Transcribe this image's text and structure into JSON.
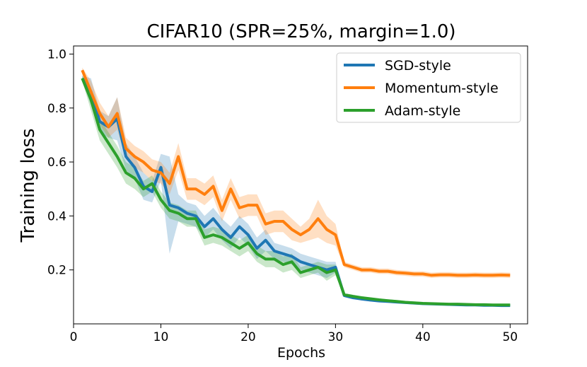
{
  "chart_data": {
    "type": "line",
    "title": "CIFAR10 (SPR=25%, margin=1.0)",
    "xlabel": "Epochs",
    "ylabel": "Training loss",
    "xlim": [
      0,
      52
    ],
    "ylim": [
      0.0,
      1.03
    ],
    "xticks": [
      0,
      10,
      20,
      30,
      40,
      50
    ],
    "yticks": [
      0.2,
      0.4,
      0.6,
      0.8,
      1.0
    ],
    "ytick_labels": [
      "0.2",
      "0.4",
      "0.6",
      "0.8",
      "1.0"
    ],
    "grid": false,
    "legend_position": "top-right",
    "series": [
      {
        "name": "SGD-style",
        "color": "#1f77b4",
        "band_color": "#1f77b4",
        "band_halfwidth": [
          0.01,
          0.05,
          0.04,
          0.04,
          0.08,
          0.05,
          0.04,
          0.05,
          0.04,
          0.05,
          0.18,
          0.05,
          0.04,
          0.04,
          0.04,
          0.04,
          0.04,
          0.04,
          0.04,
          0.04,
          0.04,
          0.04,
          0.03,
          0.03,
          0.03,
          0.03,
          0.03,
          0.03,
          0.03,
          0.02,
          0.006,
          0.006,
          0.005,
          0.005,
          0.005,
          0.005,
          0.005,
          0.005,
          0.005,
          0.005,
          0.004,
          0.004,
          0.004,
          0.004,
          0.004,
          0.004,
          0.004,
          0.004,
          0.004,
          0.004
        ],
        "x": [
          1,
          2,
          3,
          4,
          5,
          6,
          7,
          8,
          9,
          10,
          11,
          12,
          13,
          14,
          15,
          16,
          17,
          18,
          19,
          20,
          21,
          22,
          23,
          24,
          25,
          26,
          27,
          28,
          29,
          30,
          31,
          32,
          33,
          34,
          35,
          36,
          37,
          38,
          39,
          40,
          41,
          42,
          43,
          44,
          45,
          46,
          47,
          48,
          49,
          50
        ],
        "y": [
          0.91,
          0.86,
          0.75,
          0.73,
          0.76,
          0.62,
          0.58,
          0.51,
          0.49,
          0.58,
          0.44,
          0.43,
          0.41,
          0.4,
          0.36,
          0.39,
          0.35,
          0.32,
          0.36,
          0.33,
          0.28,
          0.31,
          0.27,
          0.26,
          0.25,
          0.23,
          0.22,
          0.21,
          0.2,
          0.21,
          0.105,
          0.097,
          0.092,
          0.088,
          0.085,
          0.083,
          0.081,
          0.079,
          0.077,
          0.075,
          0.074,
          0.073,
          0.072,
          0.071,
          0.07,
          0.07,
          0.069,
          0.069,
          0.068,
          0.068
        ]
      },
      {
        "name": "Momentum-style",
        "color": "#ff7f0e",
        "band_color": "#ff7f0e",
        "band_halfwidth": [
          0.01,
          0.04,
          0.04,
          0.04,
          0.06,
          0.04,
          0.04,
          0.04,
          0.04,
          0.04,
          0.04,
          0.05,
          0.04,
          0.04,
          0.04,
          0.04,
          0.04,
          0.04,
          0.04,
          0.04,
          0.04,
          0.04,
          0.04,
          0.04,
          0.04,
          0.03,
          0.04,
          0.07,
          0.05,
          0.04,
          0.01,
          0.01,
          0.01,
          0.01,
          0.01,
          0.01,
          0.01,
          0.01,
          0.01,
          0.01,
          0.01,
          0.01,
          0.01,
          0.01,
          0.01,
          0.01,
          0.01,
          0.01,
          0.01,
          0.01
        ],
        "x": [
          1,
          2,
          3,
          4,
          5,
          6,
          7,
          8,
          9,
          10,
          11,
          12,
          13,
          14,
          15,
          16,
          17,
          18,
          19,
          20,
          21,
          22,
          23,
          24,
          25,
          26,
          27,
          28,
          29,
          30,
          31,
          32,
          33,
          34,
          35,
          36,
          37,
          38,
          39,
          40,
          41,
          42,
          43,
          44,
          45,
          46,
          47,
          48,
          49,
          50
        ],
        "y": [
          0.94,
          0.86,
          0.78,
          0.73,
          0.78,
          0.65,
          0.62,
          0.6,
          0.57,
          0.56,
          0.52,
          0.62,
          0.5,
          0.5,
          0.48,
          0.51,
          0.42,
          0.5,
          0.43,
          0.44,
          0.44,
          0.37,
          0.38,
          0.38,
          0.35,
          0.33,
          0.35,
          0.39,
          0.35,
          0.33,
          0.22,
          0.21,
          0.2,
          0.2,
          0.195,
          0.195,
          0.19,
          0.188,
          0.185,
          0.185,
          0.18,
          0.182,
          0.182,
          0.18,
          0.18,
          0.181,
          0.18,
          0.18,
          0.181,
          0.18
        ]
      },
      {
        "name": "Adam-style",
        "color": "#2ca02c",
        "band_color": "#2ca02c",
        "band_halfwidth": [
          0.01,
          0.04,
          0.04,
          0.04,
          0.04,
          0.04,
          0.04,
          0.03,
          0.03,
          0.03,
          0.03,
          0.03,
          0.03,
          0.03,
          0.03,
          0.03,
          0.03,
          0.03,
          0.03,
          0.03,
          0.03,
          0.03,
          0.03,
          0.03,
          0.03,
          0.02,
          0.02,
          0.02,
          0.03,
          0.02,
          0.006,
          0.006,
          0.005,
          0.005,
          0.005,
          0.005,
          0.005,
          0.005,
          0.005,
          0.005,
          0.004,
          0.004,
          0.004,
          0.004,
          0.004,
          0.004,
          0.004,
          0.004,
          0.004,
          0.004
        ],
        "x": [
          1,
          2,
          3,
          4,
          5,
          6,
          7,
          8,
          9,
          10,
          11,
          12,
          13,
          14,
          15,
          16,
          17,
          18,
          19,
          20,
          21,
          22,
          23,
          24,
          25,
          26,
          27,
          28,
          29,
          30,
          31,
          32,
          33,
          34,
          35,
          36,
          37,
          38,
          39,
          40,
          41,
          42,
          43,
          44,
          45,
          46,
          47,
          48,
          49,
          50
        ],
        "y": [
          0.91,
          0.83,
          0.72,
          0.67,
          0.62,
          0.56,
          0.54,
          0.5,
          0.52,
          0.46,
          0.42,
          0.41,
          0.39,
          0.39,
          0.32,
          0.33,
          0.32,
          0.3,
          0.28,
          0.3,
          0.26,
          0.24,
          0.24,
          0.22,
          0.23,
          0.19,
          0.2,
          0.21,
          0.19,
          0.2,
          0.108,
          0.102,
          0.097,
          0.093,
          0.089,
          0.086,
          0.083,
          0.08,
          0.078,
          0.076,
          0.075,
          0.074,
          0.073,
          0.073,
          0.072,
          0.071,
          0.071,
          0.07,
          0.07,
          0.07
        ]
      }
    ]
  }
}
